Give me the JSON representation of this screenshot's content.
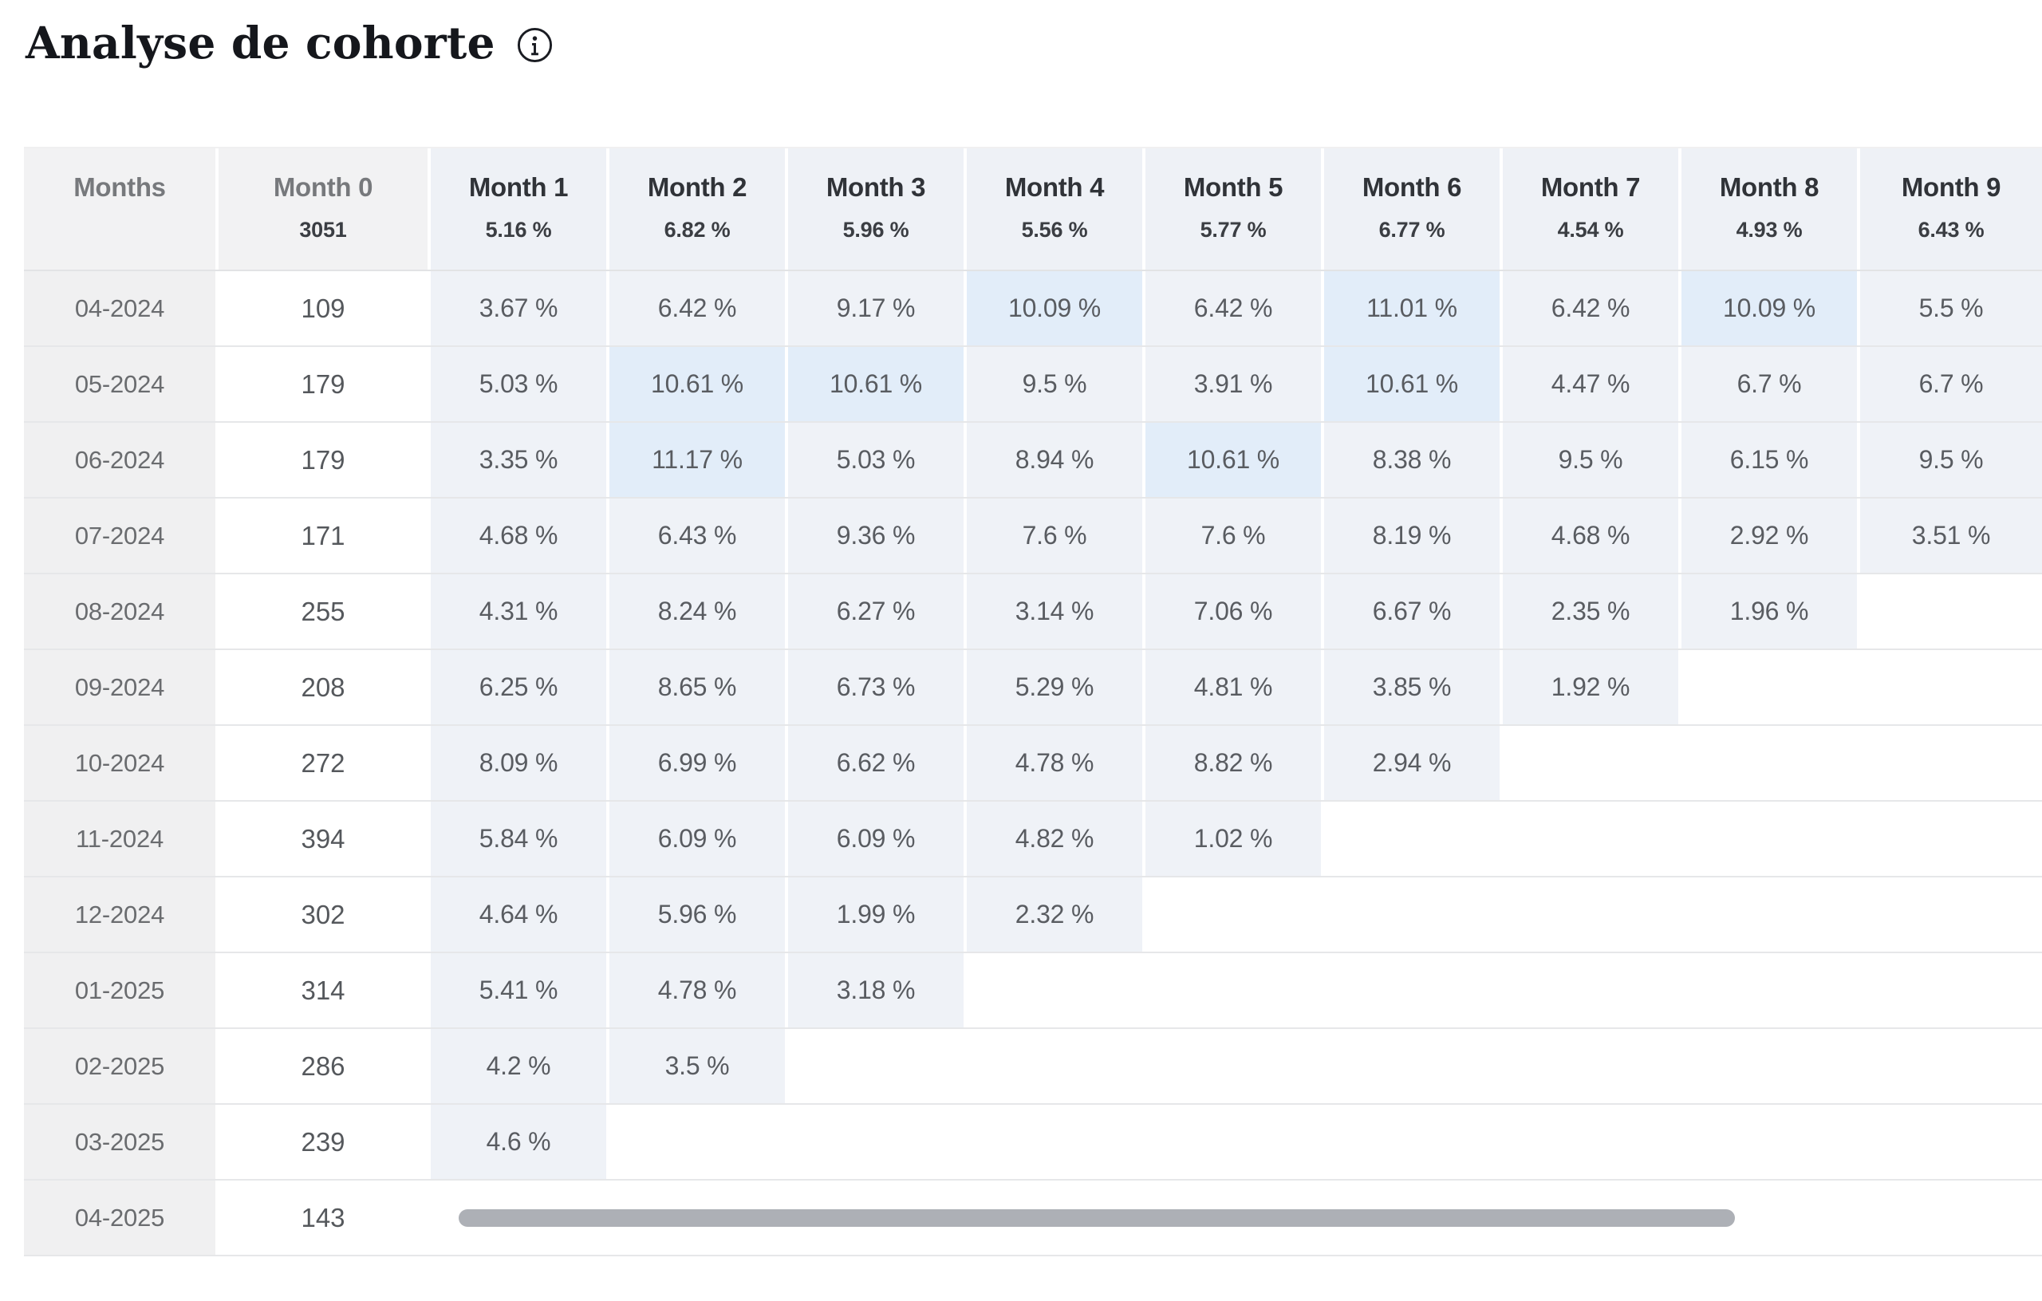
{
  "page": {
    "title": "Analyse de cohorte",
    "info_icon": "info-icon"
  },
  "table": {
    "row_axis_label": "Months",
    "columns": [
      {
        "label": "Month 0",
        "sub": "3051"
      },
      {
        "label": "Month 1",
        "sub": "5.16 %"
      },
      {
        "label": "Month 2",
        "sub": "6.82 %"
      },
      {
        "label": "Month 3",
        "sub": "5.96 %"
      },
      {
        "label": "Month 4",
        "sub": "5.56 %"
      },
      {
        "label": "Month 5",
        "sub": "5.77 %"
      },
      {
        "label": "Month 6",
        "sub": "6.77 %"
      },
      {
        "label": "Month 7",
        "sub": "4.54 %"
      },
      {
        "label": "Month 8",
        "sub": "4.93 %"
      },
      {
        "label": "Month 9",
        "sub": "6.43 %"
      }
    ],
    "rows": [
      {
        "label": "04-2024",
        "cohort_size": "109",
        "values": [
          "3.67 %",
          "6.42 %",
          "9.17 %",
          "10.09 %",
          "6.42 %",
          "11.01 %",
          "6.42 %",
          "10.09 %",
          "5.5 %"
        ]
      },
      {
        "label": "05-2024",
        "cohort_size": "179",
        "values": [
          "5.03 %",
          "10.61 %",
          "10.61 %",
          "9.5 %",
          "3.91 %",
          "10.61 %",
          "4.47 %",
          "6.7 %",
          "6.7 %"
        ]
      },
      {
        "label": "06-2024",
        "cohort_size": "179",
        "values": [
          "3.35 %",
          "11.17 %",
          "5.03 %",
          "8.94 %",
          "10.61 %",
          "8.38 %",
          "9.5 %",
          "6.15 %",
          "9.5 %"
        ]
      },
      {
        "label": "07-2024",
        "cohort_size": "171",
        "values": [
          "4.68 %",
          "6.43 %",
          "9.36 %",
          "7.6 %",
          "7.6 %",
          "8.19 %",
          "4.68 %",
          "2.92 %",
          "3.51 %"
        ]
      },
      {
        "label": "08-2024",
        "cohort_size": "255",
        "values": [
          "4.31 %",
          "8.24 %",
          "6.27 %",
          "3.14 %",
          "7.06 %",
          "6.67 %",
          "2.35 %",
          "1.96 %"
        ]
      },
      {
        "label": "09-2024",
        "cohort_size": "208",
        "values": [
          "6.25 %",
          "8.65 %",
          "6.73 %",
          "5.29 %",
          "4.81 %",
          "3.85 %",
          "1.92 %"
        ]
      },
      {
        "label": "10-2024",
        "cohort_size": "272",
        "values": [
          "8.09 %",
          "6.99 %",
          "6.62 %",
          "4.78 %",
          "8.82 %",
          "2.94 %"
        ]
      },
      {
        "label": "11-2024",
        "cohort_size": "394",
        "values": [
          "5.84 %",
          "6.09 %",
          "6.09 %",
          "4.82 %",
          "1.02 %"
        ]
      },
      {
        "label": "12-2024",
        "cohort_size": "302",
        "values": [
          "4.64 %",
          "5.96 %",
          "1.99 %",
          "2.32 %"
        ]
      },
      {
        "label": "01-2025",
        "cohort_size": "314",
        "values": [
          "5.41 %",
          "4.78 %",
          "3.18 %"
        ]
      },
      {
        "label": "02-2025",
        "cohort_size": "286",
        "values": [
          "4.2 %",
          "3.5 %"
        ]
      },
      {
        "label": "03-2025",
        "cohort_size": "239",
        "values": [
          "4.6 %"
        ]
      },
      {
        "label": "04-2025",
        "cohort_size": "143",
        "values": []
      }
    ]
  },
  "chart_data": {
    "type": "table",
    "title": "Analyse de cohorte",
    "subtype": "cohort-retention-heatmap",
    "columns": [
      "Month 0",
      "Month 1",
      "Month 2",
      "Month 3",
      "Month 4",
      "Month 5",
      "Month 6",
      "Month 7",
      "Month 8",
      "Month 9"
    ],
    "column_averages": [
      3051,
      5.16,
      6.82,
      5.96,
      5.56,
      5.77,
      6.77,
      4.54,
      4.93,
      6.43
    ],
    "row_labels": [
      "04-2024",
      "05-2024",
      "06-2024",
      "07-2024",
      "08-2024",
      "09-2024",
      "10-2024",
      "11-2024",
      "12-2024",
      "01-2025",
      "02-2025",
      "03-2025",
      "04-2025"
    ],
    "cohort_sizes": [
      109,
      179,
      179,
      171,
      255,
      208,
      272,
      394,
      302,
      314,
      286,
      239,
      143
    ],
    "retention_pct": [
      [
        3.67,
        6.42,
        9.17,
        10.09,
        6.42,
        11.01,
        6.42,
        10.09,
        5.5
      ],
      [
        5.03,
        10.61,
        10.61,
        9.5,
        3.91,
        10.61,
        4.47,
        6.7,
        6.7
      ],
      [
        3.35,
        11.17,
        5.03,
        8.94,
        10.61,
        8.38,
        9.5,
        6.15,
        9.5
      ],
      [
        4.68,
        6.43,
        9.36,
        7.6,
        7.6,
        8.19,
        4.68,
        2.92,
        3.51
      ],
      [
        4.31,
        8.24,
        6.27,
        3.14,
        7.06,
        6.67,
        2.35,
        1.96,
        null
      ],
      [
        6.25,
        8.65,
        6.73,
        5.29,
        4.81,
        3.85,
        1.92,
        null,
        null
      ],
      [
        8.09,
        6.99,
        6.62,
        4.78,
        8.82,
        2.94,
        null,
        null,
        null
      ],
      [
        5.84,
        6.09,
        6.09,
        4.82,
        1.02,
        null,
        null,
        null,
        null
      ],
      [
        4.64,
        5.96,
        1.99,
        2.32,
        null,
        null,
        null,
        null,
        null
      ],
      [
        5.41,
        4.78,
        3.18,
        null,
        null,
        null,
        null,
        null,
        null
      ],
      [
        4.2,
        3.5,
        null,
        null,
        null,
        null,
        null,
        null,
        null
      ],
      [
        4.6,
        null,
        null,
        null,
        null,
        null,
        null,
        null,
        null
      ],
      [
        null,
        null,
        null,
        null,
        null,
        null,
        null,
        null,
        null
      ]
    ],
    "highlight_threshold_pct": 10
  },
  "colors": {
    "cell_low": "#eff2f7",
    "cell_high": "#e2edf9",
    "header_gray": "#f2f2f3",
    "header_blue": "#eef1f6",
    "row_label_bg": "#f0f0f1",
    "scrollbar": "#adb0b6",
    "title_text": "#15171c"
  },
  "scrollbar": {
    "orientation": "horizontal",
    "visible": true
  }
}
